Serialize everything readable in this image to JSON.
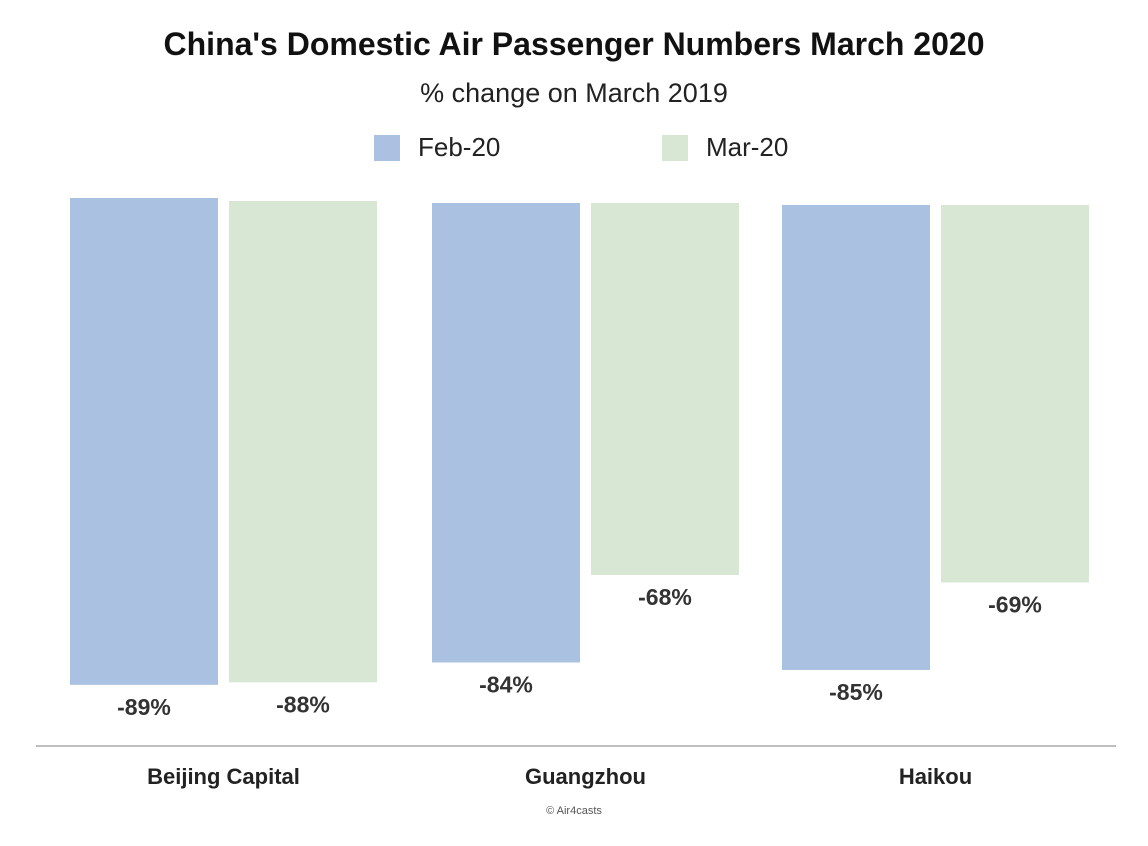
{
  "chart_data": {
    "type": "bar",
    "title": "China's Domestic Air Passenger Numbers March 2020",
    "subtitle": "% change on March 2019",
    "categories": [
      "Beijing Capital",
      "Guangzhou",
      "Haikou"
    ],
    "series": [
      {
        "name": "Feb-20",
        "values": [
          -89,
          -84,
          -85
        ],
        "labels": [
          "-89%",
          "-84%",
          "-85%"
        ],
        "color": "#aac1e1"
      },
      {
        "name": "Mar-20",
        "values": [
          -88,
          -68,
          -69
        ],
        "labels": [
          "-88%",
          "-68%",
          "-69%"
        ],
        "color": "#d8e7d3"
      }
    ],
    "ylim": [
      -100,
      0
    ],
    "grid": false,
    "legend": "top-center",
    "credit": "© Air4casts"
  }
}
